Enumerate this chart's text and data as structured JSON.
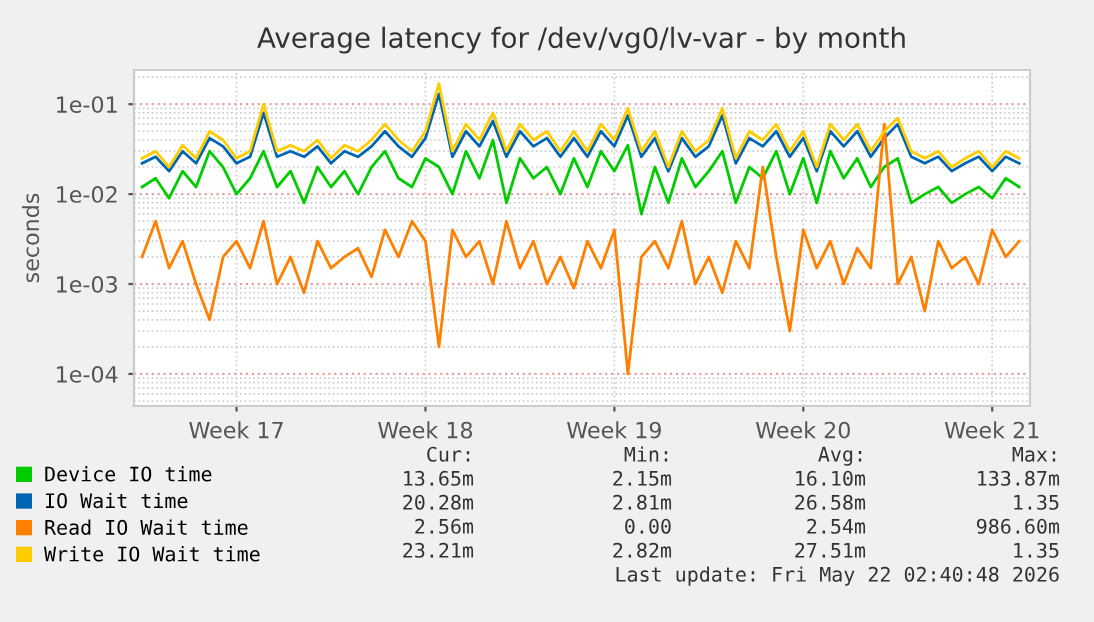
{
  "chart_data": {
    "type": "line",
    "title": "Average latency for /dev/vg0/lv-var - by month",
    "ylabel": "seconds",
    "categories": [
      null,
      null,
      null,
      null,
      null,
      null,
      null,
      "Week 17",
      null,
      null,
      null,
      null,
      null,
      null,
      null,
      null,
      null,
      null,
      null,
      null,
      null,
      "Week 18",
      null,
      null,
      null,
      null,
      null,
      null,
      null,
      null,
      null,
      null,
      null,
      null,
      null,
      "Week 19",
      null,
      null,
      null,
      null,
      null,
      null,
      null,
      null,
      null,
      null,
      null,
      null,
      null,
      "Week 20",
      null,
      null,
      null,
      null,
      null,
      null,
      null,
      null,
      null,
      null,
      null,
      null,
      null,
      "Week 21",
      null,
      null
    ],
    "series": [
      {
        "name": "Device IO time",
        "color": "#00cc00",
        "values": [
          0.012,
          0.015,
          0.009,
          0.018,
          0.012,
          0.03,
          0.02,
          0.01,
          0.015,
          0.03,
          0.012,
          0.018,
          0.008,
          0.02,
          0.012,
          0.018,
          0.01,
          0.02,
          0.03,
          0.015,
          0.012,
          0.025,
          0.02,
          0.01,
          0.03,
          0.015,
          0.04,
          0.008,
          0.025,
          0.015,
          0.02,
          0.01,
          0.025,
          0.012,
          0.03,
          0.018,
          0.035,
          0.006,
          0.02,
          0.008,
          0.025,
          0.012,
          0.018,
          0.03,
          0.008,
          0.02,
          0.015,
          0.03,
          0.01,
          0.025,
          0.008,
          0.03,
          0.015,
          0.025,
          0.012,
          0.02,
          0.025,
          0.008,
          0.01,
          0.012,
          0.008,
          0.01,
          0.012,
          0.009,
          0.015,
          0.012
        ]
      },
      {
        "name": "IO Wait time",
        "color": "#0066b3",
        "values": [
          0.022,
          0.026,
          0.018,
          0.03,
          0.022,
          0.042,
          0.034,
          0.022,
          0.026,
          0.08,
          0.026,
          0.03,
          0.026,
          0.034,
          0.022,
          0.03,
          0.026,
          0.034,
          0.05,
          0.034,
          0.026,
          0.042,
          0.13,
          0.026,
          0.05,
          0.034,
          0.065,
          0.026,
          0.05,
          0.034,
          0.042,
          0.026,
          0.042,
          0.026,
          0.05,
          0.034,
          0.075,
          0.026,
          0.042,
          0.018,
          0.042,
          0.026,
          0.034,
          0.075,
          0.022,
          0.042,
          0.034,
          0.05,
          0.026,
          0.042,
          0.018,
          0.05,
          0.034,
          0.05,
          0.026,
          0.042,
          0.06,
          0.026,
          0.022,
          0.026,
          0.018,
          0.022,
          0.026,
          0.018,
          0.026,
          0.022
        ]
      },
      {
        "name": "Read IO Wait time",
        "color": "#ff8000",
        "values": [
          0.002,
          0.005,
          0.0015,
          0.003,
          0.001,
          0.0004,
          0.002,
          0.003,
          0.0015,
          0.005,
          0.001,
          0.002,
          0.0008,
          0.003,
          0.0015,
          0.002,
          0.0025,
          0.0012,
          0.004,
          0.002,
          0.005,
          0.003,
          0.0002,
          0.004,
          0.002,
          0.003,
          0.001,
          0.005,
          0.0015,
          0.003,
          0.001,
          0.002,
          0.0009,
          0.003,
          0.0015,
          0.004,
          0.0001,
          0.002,
          0.003,
          0.0015,
          0.005,
          0.001,
          0.002,
          0.0008,
          0.003,
          0.0015,
          0.02,
          0.002,
          0.0003,
          0.004,
          0.0015,
          0.003,
          0.001,
          0.0025,
          0.0015,
          0.06,
          0.001,
          0.002,
          0.0005,
          0.003,
          0.0015,
          0.002,
          0.001,
          0.004,
          0.002,
          0.003
        ]
      },
      {
        "name": "Write IO Wait time",
        "color": "#ffcc00",
        "values": [
          0.025,
          0.03,
          0.02,
          0.035,
          0.025,
          0.05,
          0.04,
          0.025,
          0.03,
          0.1,
          0.03,
          0.035,
          0.03,
          0.04,
          0.025,
          0.035,
          0.03,
          0.04,
          0.06,
          0.04,
          0.03,
          0.05,
          0.17,
          0.03,
          0.06,
          0.04,
          0.08,
          0.03,
          0.06,
          0.04,
          0.05,
          0.03,
          0.05,
          0.03,
          0.06,
          0.04,
          0.09,
          0.03,
          0.05,
          0.02,
          0.05,
          0.03,
          0.04,
          0.09,
          0.025,
          0.05,
          0.04,
          0.06,
          0.03,
          0.05,
          0.02,
          0.06,
          0.04,
          0.06,
          0.03,
          0.05,
          0.07,
          0.03,
          0.025,
          0.03,
          0.02,
          0.025,
          0.03,
          0.02,
          0.03,
          0.025
        ]
      }
    ],
    "log": "y",
    "ylim": [
      4.4e-05,
      0.24
    ],
    "yticks": [
      {
        "value": 0.0001,
        "label": "1e-04"
      },
      {
        "value": 0.001,
        "label": "1e-03"
      },
      {
        "value": 0.01,
        "label": "1e-02"
      },
      {
        "value": 0.1,
        "label": "1e-01"
      }
    ],
    "grid": true,
    "legend": "bottom",
    "line_style": "solid",
    "marker": "none",
    "annotations": [
      "Cur:",
      "Min:",
      "Avg:",
      "Max:",
      "13.65m",
      "2.15m",
      "16.10m",
      "133.87m",
      "20.28m",
      "2.81m",
      "26.58m",
      "1.35",
      "2.56m",
      "0.00",
      "2.54m",
      "986.60m",
      "23.21m",
      "2.82m",
      "27.51m",
      "1.35",
      "Last update: Fri May 22 02:40:48 2026"
    ]
  }
}
